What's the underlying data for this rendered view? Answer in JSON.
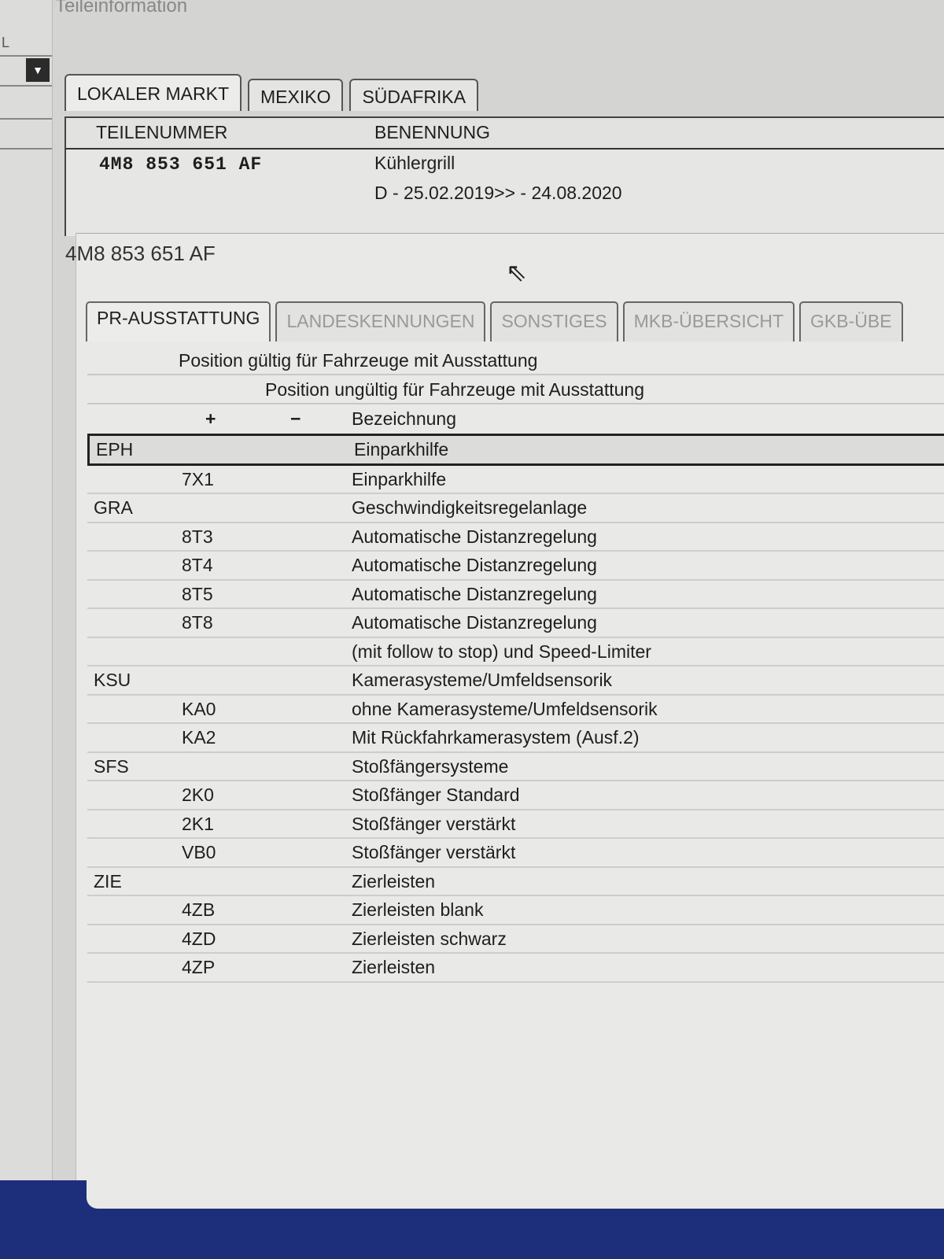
{
  "window": {
    "title": "Teileinformation"
  },
  "left": {
    "fragment": "L",
    "dropdown_icon": "triangle-down-icon"
  },
  "market_tabs": [
    {
      "label": "LOKALER MARKT",
      "active": true
    },
    {
      "label": "MEXIKO"
    },
    {
      "label": "SÜDAFRIKA"
    }
  ],
  "part_table": {
    "headers": [
      "TEILENUMMER",
      "BENENNUNG"
    ],
    "part_number": "4M8 853 651 AF",
    "name": "Kühlergrill",
    "validity": "D - 25.02.2019>> - 24.08.2020"
  },
  "popup": {
    "title": "4M8 853 651 AF",
    "tabs": [
      {
        "label": "PR-AUSSTATTUNG",
        "active": true
      },
      {
        "label": "LANDESKENNUNGEN"
      },
      {
        "label": "SONSTIGES"
      },
      {
        "label": "MKB-ÜBERSICHT"
      },
      {
        "label": "GKB-ÜBE"
      }
    ],
    "header_valid": "Position gültig für Fahrzeuge mit Ausstattung",
    "header_invalid": "Position ungültig für Fahrzeuge mit Ausstattung",
    "col_plus": "+",
    "col_minus": "−",
    "col_desc": "Bezeichnung",
    "rows": [
      {
        "group": "EPH",
        "code": "",
        "desc": "Einparkhilfe",
        "selected": true
      },
      {
        "group": "",
        "code": "7X1",
        "desc": "Einparkhilfe"
      },
      {
        "group": "GRA",
        "code": "",
        "desc": "Geschwindigkeitsregelanlage"
      },
      {
        "group": "",
        "code": "8T3",
        "desc": "Automatische Distanzregelung"
      },
      {
        "group": "",
        "code": "8T4",
        "desc": "Automatische Distanzregelung"
      },
      {
        "group": "",
        "code": "8T5",
        "desc": "Automatische Distanzregelung"
      },
      {
        "group": "",
        "code": "8T8",
        "desc": "Automatische Distanzregelung"
      },
      {
        "group": "",
        "code": "",
        "desc": "(mit follow to stop) und Speed-Limiter"
      },
      {
        "group": "KSU",
        "code": "",
        "desc": "Kamerasysteme/Umfeldsensorik"
      },
      {
        "group": "",
        "code": "KA0",
        "desc": "ohne Kamerasysteme/Umfeldsensorik"
      },
      {
        "group": "",
        "code": "KA2",
        "desc": "Mit Rückfahrkamerasystem (Ausf.2)"
      },
      {
        "group": "SFS",
        "code": "",
        "desc": "Stoßfängersysteme"
      },
      {
        "group": "",
        "code": "2K0",
        "desc": "Stoßfänger Standard"
      },
      {
        "group": "",
        "code": "2K1",
        "desc": "Stoßfänger verstärkt"
      },
      {
        "group": "",
        "code": "VB0",
        "desc": "Stoßfänger verstärkt"
      },
      {
        "group": "ZIE",
        "code": "",
        "desc": "Zierleisten"
      },
      {
        "group": "",
        "code": "4ZB",
        "desc": "Zierleisten blank"
      },
      {
        "group": "",
        "code": "4ZD",
        "desc": "Zierleisten schwarz"
      },
      {
        "group": "",
        "code": "4ZP",
        "desc": "Zierleisten"
      }
    ]
  }
}
